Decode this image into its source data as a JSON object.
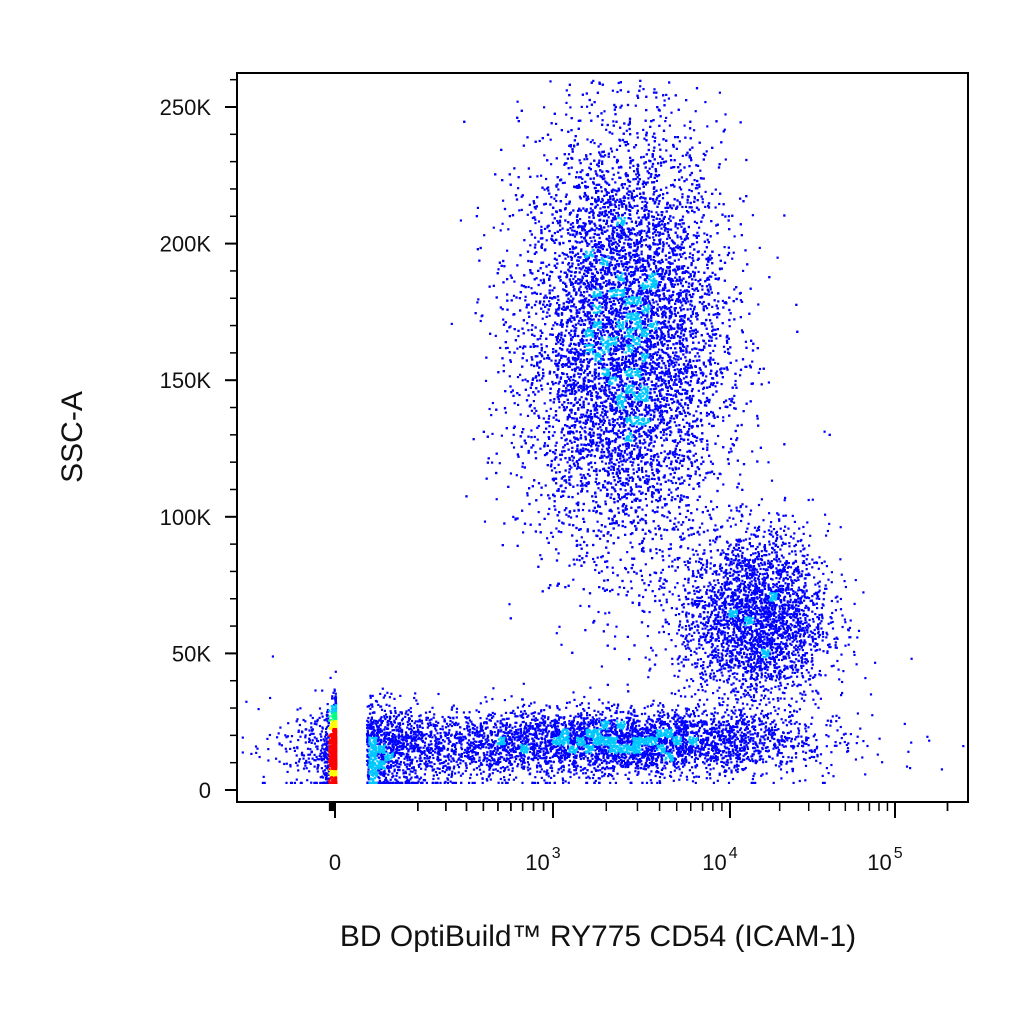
{
  "chart_data": {
    "type": "scatter",
    "title": "",
    "xlabel": "BD OptiBuild™ RY775 CD54 (ICAM-1)",
    "ylabel": "SSC-A",
    "x_scale": "biexponential",
    "y_scale": "linear",
    "ylim": [
      0,
      262144
    ],
    "y_ticks": [
      {
        "value": 0,
        "label": "0"
      },
      {
        "value": 50000,
        "label": "50K"
      },
      {
        "value": 100000,
        "label": "100K"
      },
      {
        "value": 150000,
        "label": "150K"
      },
      {
        "value": 200000,
        "label": "200K"
      },
      {
        "value": 250000,
        "label": "250K"
      }
    ],
    "x_ticks": [
      {
        "value": 0,
        "label": "0"
      },
      {
        "value": 1000,
        "base": "10",
        "exp": "3"
      },
      {
        "value": 10000,
        "base": "10",
        "exp": "4"
      },
      {
        "value": 100000,
        "base": "10",
        "exp": "5"
      }
    ],
    "colormap": [
      "#0000ff",
      "#00c8ff",
      "#00ff80",
      "#ffff00",
      "#ff0000"
    ],
    "populations": [
      {
        "x_center": 2500,
        "x_spread_decades": 0.28,
        "y_center": 165000,
        "y_sd": 38000,
        "events": 11000
      },
      {
        "x_center": 14000,
        "x_spread_decades": 0.22,
        "y_center": 63000,
        "y_sd": 16000,
        "events": 3000
      },
      {
        "x_center": 2500,
        "x_spread_decades": 0.5,
        "y_center": 18000,
        "y_sd": 5500,
        "events": 3500
      },
      {
        "x_center": 0,
        "x_spread_decades": 1.5,
        "y_center": 15000,
        "y_sd": 8000,
        "events": 3500
      }
    ],
    "grid": false,
    "legend": "none"
  }
}
